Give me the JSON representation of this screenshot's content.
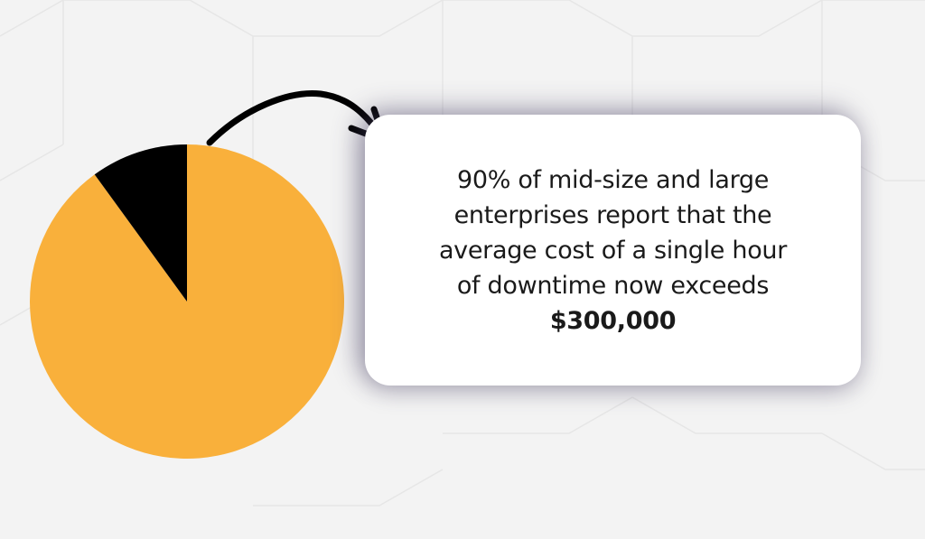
{
  "colors": {
    "background": "#f3f3f3",
    "major_slice": "#f9b03b",
    "minor_slice": "#000000",
    "card": "#ffffff"
  },
  "chart_data": {
    "type": "pie",
    "values": [
      90,
      10
    ],
    "colors": [
      "#f9b03b",
      "#000000"
    ]
  },
  "callout": {
    "lines": [
      "90% of mid-size and large",
      "enterprises report that the",
      "average cost of a single hour",
      "of downtime now exceeds"
    ],
    "highlight": "$300,000"
  },
  "icons": {
    "arrow": "curved-arrow-right"
  }
}
